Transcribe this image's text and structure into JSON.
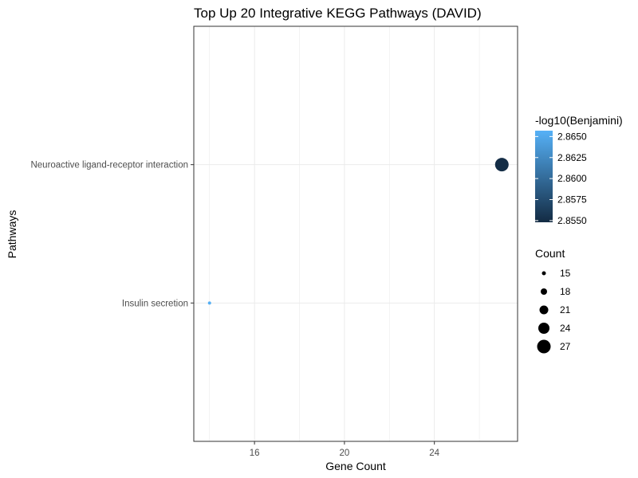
{
  "chart_data": {
    "type": "scatter",
    "title": "Top Up 20 Integrative KEGG Pathways (DAVID)",
    "xlabel": "Gene Count",
    "ylabel": "Pathways",
    "xlim": [
      13.3,
      27.7
    ],
    "xticks": [
      16,
      20,
      24
    ],
    "grid": true,
    "categories": [
      "Insulin secretion",
      "Neuroactive ligand-receptor interaction"
    ],
    "points": [
      {
        "pathway": "Neuroactive ligand-receptor interaction",
        "count": 27,
        "neg_log10_benjamini": 2.855
      },
      {
        "pathway": "Insulin secretion",
        "count": 14,
        "neg_log10_benjamini": 2.8655
      }
    ],
    "color_legend": {
      "title": "-log10(Benjamini)",
      "min": 2.8548,
      "max": 2.8657,
      "ticks": [
        2.865,
        2.8625,
        2.86,
        2.8575,
        2.855
      ],
      "tick_labels": [
        "2.8650",
        "2.8625",
        "2.8600",
        "2.8575",
        "2.8550"
      ],
      "low_color": "#132B43",
      "high_color": "#56B1F7"
    },
    "size_legend": {
      "title": "Count",
      "values": [
        15,
        18,
        21,
        24,
        27
      ]
    },
    "legend_position": "right"
  }
}
